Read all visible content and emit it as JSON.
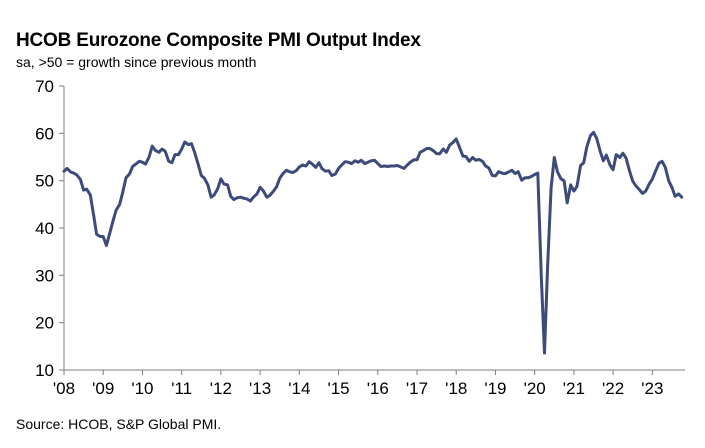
{
  "chart_data": {
    "type": "line",
    "title": "HCOB Eurozone Composite PMI Output Index",
    "subtitle": "sa, >50 = growth  since previous  month",
    "source": "Source: HCOB, S&P Global  PMI.",
    "xlabel": "",
    "ylabel": "",
    "ylim": [
      10,
      70
    ],
    "yticks": [
      10,
      20,
      30,
      40,
      50,
      60,
      70
    ],
    "yticks_labels": [
      "10",
      "20",
      "30",
      "40",
      "50",
      "60",
      "70"
    ],
    "x_range": [
      2008.0,
      2023.833
    ],
    "xticks": [
      2008,
      2009,
      2010,
      2011,
      2012,
      2013,
      2014,
      2015,
      2016,
      2017,
      2018,
      2019,
      2020,
      2021,
      2022,
      2023
    ],
    "xtick_labels": [
      "'08",
      "'09",
      "'10",
      "'11",
      "'12",
      "'13",
      "'14",
      "'15",
      "'16",
      "'17",
      "'18",
      "'19",
      "'20",
      "'21",
      "'22",
      "'23"
    ],
    "grid": false,
    "line_color": "#3d4b7b",
    "series": [
      {
        "name": "Composite PMI Output Index",
        "points": [
          [
            2008.0,
            52.0
          ],
          [
            2008.08,
            52.6
          ],
          [
            2008.17,
            51.8
          ],
          [
            2008.25,
            51.6
          ],
          [
            2008.33,
            51.2
          ],
          [
            2008.42,
            50.2
          ],
          [
            2008.5,
            48.0
          ],
          [
            2008.58,
            48.2
          ],
          [
            2008.67,
            47.0
          ],
          [
            2008.75,
            43.0
          ],
          [
            2008.83,
            38.7
          ],
          [
            2008.92,
            38.2
          ],
          [
            2009.0,
            38.2
          ],
          [
            2009.08,
            36.3
          ],
          [
            2009.17,
            39.0
          ],
          [
            2009.25,
            41.5
          ],
          [
            2009.33,
            43.8
          ],
          [
            2009.42,
            45.0
          ],
          [
            2009.5,
            47.6
          ],
          [
            2009.58,
            50.6
          ],
          [
            2009.67,
            51.4
          ],
          [
            2009.75,
            53.0
          ],
          [
            2009.83,
            53.5
          ],
          [
            2009.92,
            54.1
          ],
          [
            2010.0,
            53.9
          ],
          [
            2010.08,
            53.5
          ],
          [
            2010.17,
            55.0
          ],
          [
            2010.25,
            57.3
          ],
          [
            2010.33,
            56.4
          ],
          [
            2010.42,
            56.0
          ],
          [
            2010.5,
            56.7
          ],
          [
            2010.58,
            56.2
          ],
          [
            2010.67,
            54.1
          ],
          [
            2010.75,
            53.8
          ],
          [
            2010.83,
            55.5
          ],
          [
            2010.92,
            55.5
          ],
          [
            2011.0,
            56.7
          ],
          [
            2011.08,
            58.2
          ],
          [
            2011.17,
            57.6
          ],
          [
            2011.25,
            57.8
          ],
          [
            2011.33,
            56.0
          ],
          [
            2011.42,
            53.5
          ],
          [
            2011.5,
            51.1
          ],
          [
            2011.58,
            50.5
          ],
          [
            2011.67,
            49.1
          ],
          [
            2011.75,
            46.5
          ],
          [
            2011.83,
            47.0
          ],
          [
            2011.92,
            48.3
          ],
          [
            2012.0,
            50.4
          ],
          [
            2012.08,
            49.3
          ],
          [
            2012.17,
            49.1
          ],
          [
            2012.25,
            46.7
          ],
          [
            2012.33,
            46.0
          ],
          [
            2012.42,
            46.4
          ],
          [
            2012.5,
            46.5
          ],
          [
            2012.58,
            46.3
          ],
          [
            2012.67,
            46.1
          ],
          [
            2012.75,
            45.7
          ],
          [
            2012.83,
            46.5
          ],
          [
            2012.92,
            47.2
          ],
          [
            2013.0,
            48.6
          ],
          [
            2013.08,
            47.9
          ],
          [
            2013.17,
            46.5
          ],
          [
            2013.25,
            46.9
          ],
          [
            2013.33,
            47.7
          ],
          [
            2013.42,
            48.7
          ],
          [
            2013.5,
            50.5
          ],
          [
            2013.58,
            51.5
          ],
          [
            2013.67,
            52.2
          ],
          [
            2013.75,
            51.9
          ],
          [
            2013.83,
            51.7
          ],
          [
            2013.92,
            52.1
          ],
          [
            2014.0,
            52.9
          ],
          [
            2014.08,
            53.3
          ],
          [
            2014.17,
            53.1
          ],
          [
            2014.25,
            54.0
          ],
          [
            2014.33,
            53.5
          ],
          [
            2014.42,
            52.8
          ],
          [
            2014.5,
            53.8
          ],
          [
            2014.58,
            52.5
          ],
          [
            2014.67,
            52.0
          ],
          [
            2014.75,
            52.1
          ],
          [
            2014.83,
            51.1
          ],
          [
            2014.92,
            51.4
          ],
          [
            2015.0,
            52.6
          ],
          [
            2015.08,
            53.3
          ],
          [
            2015.17,
            54.0
          ],
          [
            2015.25,
            53.9
          ],
          [
            2015.33,
            53.6
          ],
          [
            2015.42,
            54.2
          ],
          [
            2015.5,
            53.9
          ],
          [
            2015.58,
            54.3
          ],
          [
            2015.67,
            53.6
          ],
          [
            2015.75,
            53.9
          ],
          [
            2015.83,
            54.2
          ],
          [
            2015.92,
            54.3
          ],
          [
            2016.0,
            53.6
          ],
          [
            2016.08,
            53.0
          ],
          [
            2016.17,
            53.1
          ],
          [
            2016.25,
            53.0
          ],
          [
            2016.33,
            53.1
          ],
          [
            2016.42,
            53.1
          ],
          [
            2016.5,
            53.2
          ],
          [
            2016.58,
            52.9
          ],
          [
            2016.67,
            52.6
          ],
          [
            2016.75,
            53.3
          ],
          [
            2016.83,
            53.9
          ],
          [
            2016.92,
            54.4
          ],
          [
            2017.0,
            54.4
          ],
          [
            2017.08,
            56.0
          ],
          [
            2017.17,
            56.4
          ],
          [
            2017.25,
            56.8
          ],
          [
            2017.33,
            56.8
          ],
          [
            2017.42,
            56.3
          ],
          [
            2017.5,
            55.7
          ],
          [
            2017.58,
            55.7
          ],
          [
            2017.67,
            56.7
          ],
          [
            2017.75,
            56.0
          ],
          [
            2017.83,
            57.5
          ],
          [
            2017.92,
            58.1
          ],
          [
            2018.0,
            58.8
          ],
          [
            2018.08,
            57.1
          ],
          [
            2018.17,
            55.2
          ],
          [
            2018.25,
            55.1
          ],
          [
            2018.33,
            54.1
          ],
          [
            2018.42,
            54.9
          ],
          [
            2018.5,
            54.3
          ],
          [
            2018.58,
            54.5
          ],
          [
            2018.67,
            54.1
          ],
          [
            2018.75,
            53.1
          ],
          [
            2018.83,
            52.7
          ],
          [
            2018.92,
            51.1
          ],
          [
            2019.0,
            51.0
          ],
          [
            2019.08,
            51.9
          ],
          [
            2019.17,
            51.6
          ],
          [
            2019.25,
            51.5
          ],
          [
            2019.33,
            51.8
          ],
          [
            2019.42,
            52.2
          ],
          [
            2019.5,
            51.5
          ],
          [
            2019.58,
            51.9
          ],
          [
            2019.67,
            50.1
          ],
          [
            2019.75,
            50.6
          ],
          [
            2019.83,
            50.6
          ],
          [
            2019.92,
            50.9
          ],
          [
            2020.0,
            51.3
          ],
          [
            2020.08,
            51.6
          ],
          [
            2020.17,
            29.7
          ],
          [
            2020.25,
            13.6
          ],
          [
            2020.33,
            31.9
          ],
          [
            2020.42,
            48.5
          ],
          [
            2020.5,
            54.9
          ],
          [
            2020.58,
            51.9
          ],
          [
            2020.67,
            50.4
          ],
          [
            2020.75,
            50.0
          ],
          [
            2020.83,
            45.3
          ],
          [
            2020.92,
            49.1
          ],
          [
            2021.0,
            47.8
          ],
          [
            2021.08,
            48.8
          ],
          [
            2021.17,
            53.2
          ],
          [
            2021.25,
            53.8
          ],
          [
            2021.33,
            57.1
          ],
          [
            2021.42,
            59.5
          ],
          [
            2021.5,
            60.2
          ],
          [
            2021.58,
            59.0
          ],
          [
            2021.67,
            56.2
          ],
          [
            2021.75,
            54.2
          ],
          [
            2021.83,
            55.4
          ],
          [
            2021.92,
            53.3
          ],
          [
            2022.0,
            52.3
          ],
          [
            2022.08,
            55.5
          ],
          [
            2022.17,
            54.9
          ],
          [
            2022.25,
            55.8
          ],
          [
            2022.33,
            54.8
          ],
          [
            2022.42,
            52.0
          ],
          [
            2022.5,
            49.9
          ],
          [
            2022.58,
            48.9
          ],
          [
            2022.67,
            48.1
          ],
          [
            2022.75,
            47.3
          ],
          [
            2022.83,
            47.8
          ],
          [
            2022.92,
            49.3
          ],
          [
            2023.0,
            50.3
          ],
          [
            2023.08,
            52.0
          ],
          [
            2023.17,
            53.7
          ],
          [
            2023.25,
            54.1
          ],
          [
            2023.33,
            52.8
          ],
          [
            2023.42,
            49.9
          ],
          [
            2023.5,
            48.6
          ],
          [
            2023.58,
            46.7
          ],
          [
            2023.67,
            47.2
          ],
          [
            2023.75,
            46.5
          ]
        ]
      }
    ]
  }
}
